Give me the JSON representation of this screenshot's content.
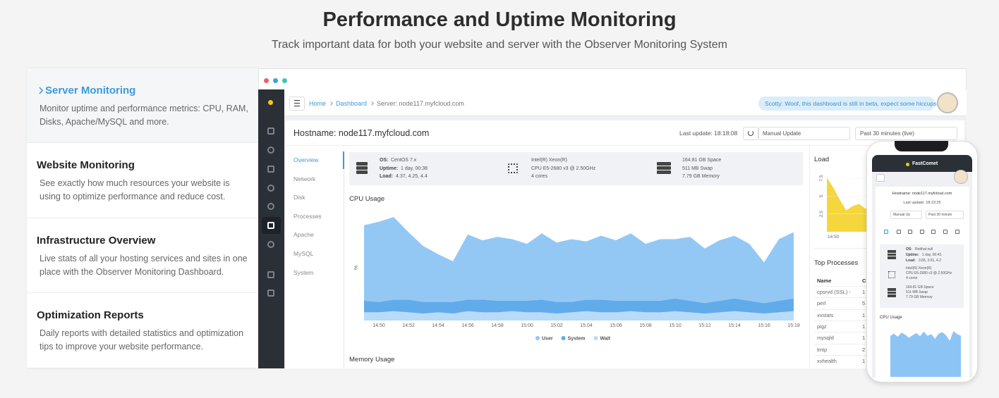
{
  "header": {
    "title": "Performance and Uptime Monitoring",
    "subtitle": "Track important data for both your website and server with the Observer Monitoring System"
  },
  "tabs": [
    {
      "title": "Server Monitoring",
      "description": "Monitor uptime and performance metrics: CPU, RAM, Disks, Apache/MySQL and more."
    },
    {
      "title": "Website Monitoring",
      "description": "See exactly how much resources your website is using to optimize performance and reduce cost."
    },
    {
      "title": "Infrastructure Overview",
      "description": "Live stats of all your hosting services and sites in one place with the Observer Monitoring Dashboard."
    },
    {
      "title": "Optimization Reports",
      "description": "Daily reports with detailed statistics and optimization tips to improve your website performance."
    }
  ],
  "dashboard": {
    "breadcrumb": [
      "Home",
      "Dashboard",
      "Server: node117.myfcloud.com"
    ],
    "assistant_message": "Scotty: Woof, this dashboard is still in beta, expect some hiccups...",
    "hostname": "Hostname: node117.myfcloud.com",
    "last_update": "Last update: 18:18:08",
    "update_mode": "Manual Update",
    "time_range": "Past 30 minutes (live)",
    "nav": [
      "Overview",
      "Network",
      "Disk",
      "Processes",
      "Apache",
      "MySQL",
      "System"
    ],
    "server_info": {
      "os": {
        "label": "OS:",
        "value": "CentOS 7.x"
      },
      "uptime": {
        "label": "Uptime:",
        "value": "1 day, 00:38"
      },
      "load": {
        "label": "Load:",
        "value": "4.37, 4.25, 4.4"
      },
      "cpu": [
        "Intel(R) Xeon(R)",
        "CPU E5-2680 v3 @ 2.50GHz",
        "4 cores"
      ],
      "storage": [
        "164.81 GB Space",
        "511 MB Swap",
        "7.79 GB Memory"
      ]
    },
    "cpu_chart": {
      "type": "area",
      "title": "CPU Usage",
      "y_label": "%",
      "x": [
        null,
        "14:50",
        null,
        "14:52",
        null,
        "14:54",
        null,
        "14:56",
        null,
        "14:58",
        null,
        "15:00",
        null,
        "15:02",
        null,
        "15:04",
        null,
        "15:06",
        null,
        "15:08",
        null,
        "15:10",
        null,
        "15:12",
        null,
        "15:14",
        null,
        "15:16",
        null,
        "15:18"
      ],
      "ylim": [
        0,
        100
      ],
      "stacked": true,
      "series": [
        {
          "name": "User",
          "color": "#93c8f5",
          "values": [
            65,
            69,
            71,
            58,
            48,
            41,
            35,
            56,
            51,
            55,
            53,
            49,
            57,
            51,
            54,
            50,
            55,
            52,
            58,
            49,
            53,
            51,
            55,
            47,
            52,
            54,
            49,
            35,
            53,
            57
          ]
        },
        {
          "name": "System",
          "color": "#62abea",
          "values": [
            10,
            9,
            10,
            11,
            10,
            9,
            10,
            10,
            11,
            10,
            9,
            10,
            11,
            10,
            9,
            10,
            11,
            10,
            9,
            10,
            10,
            11,
            10,
            9,
            10,
            11,
            10,
            9,
            10,
            11
          ]
        },
        {
          "name": "Wait",
          "color": "#b8dbf8",
          "values": [
            7,
            7,
            8,
            7,
            6,
            7,
            6,
            8,
            7,
            7,
            8,
            7,
            7,
            6,
            7,
            8,
            7,
            7,
            8,
            7,
            7,
            8,
            7,
            6,
            7,
            8,
            7,
            6,
            7,
            8
          ]
        }
      ]
    },
    "memory_title": "Memory Usage",
    "load_chart": {
      "type": "area",
      "title": "Load",
      "color": "#f5d63d",
      "x": [
        null,
        "14:50",
        null,
        null,
        null,
        null,
        null,
        null
      ],
      "values": [
        7.6,
        6.2,
        4.5,
        3.0,
        3.6,
        3.9,
        3.2,
        4.4
      ],
      "ylim": [
        0,
        8
      ],
      "yticks": [
        2.5,
        5,
        7.5
      ]
    },
    "top_processes": {
      "title": "Top Processes",
      "columns": [
        "Name",
        "C"
      ],
      "rows": [
        [
          "cpsrvd (SSL) -",
          "1"
        ],
        [
          "perl",
          "5"
        ],
        [
          "xvstats",
          "1"
        ],
        [
          "pigz",
          "1"
        ],
        [
          "mysqld",
          "1"
        ],
        [
          "lmtp",
          "2"
        ],
        [
          "xvhealth",
          "1"
        ]
      ]
    }
  },
  "mobile": {
    "brand": "FastComet",
    "hostname": "Hostname: node117.myfcloud.com",
    "last_update": "Last update: 18:23:25",
    "update_mode": "Manual Up",
    "time_range": "Past 30 minute",
    "server_info": {
      "os": {
        "label": "OS:",
        "value": "Redhat null"
      },
      "uptime": {
        "label": "Uptime:",
        "value": "1 day, 00:43"
      },
      "load": {
        "label": "Load:",
        "value": "3.66, 3.91, 4.2"
      },
      "cpu": [
        "Intel(R) Xeon(R)",
        "CPU E5-2680 v3 @ 2.50GHz",
        "4 cores"
      ],
      "storage": [
        "164.81 GB Space",
        "511 MB Swap",
        "7.79 GB Memory"
      ]
    },
    "cpu_chart": {
      "type": "area",
      "title": "CPU Usage",
      "color": "#8cc4f6",
      "ylim": [
        0,
        100
      ],
      "values": [
        80,
        84,
        78,
        86,
        82,
        76,
        81,
        85,
        79,
        88,
        80,
        83,
        74,
        84,
        87,
        81,
        70,
        89,
        83,
        80
      ]
    }
  }
}
